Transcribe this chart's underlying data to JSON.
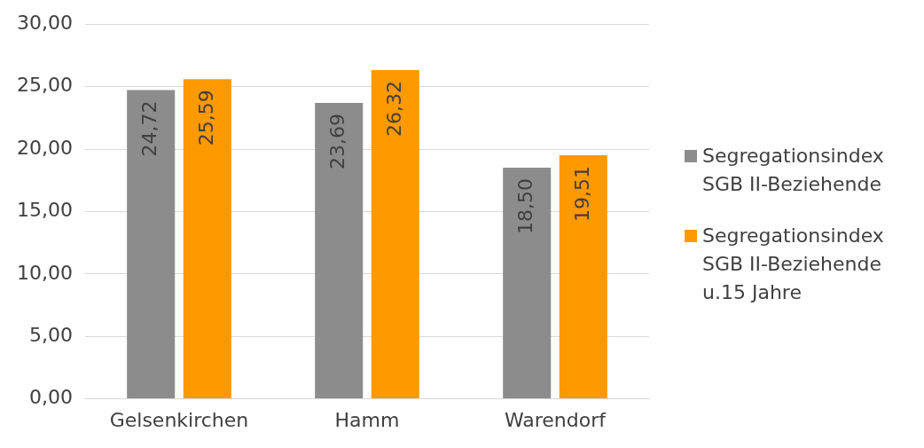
{
  "chart_data": {
    "type": "bar",
    "categories": [
      "Gelsenkirchen",
      "Hamm",
      "Warendorf"
    ],
    "series": [
      {
        "name": "Segregationsindex SGB II-Beziehende",
        "color": "#8c8c8c",
        "values": [
          24.72,
          23.69,
          18.5
        ],
        "value_labels": [
          "24,72",
          "23,69",
          "18,50"
        ]
      },
      {
        "name": "Segregationsindex SGB II-Beziehende u.15 Jahre",
        "color": "#ff9900",
        "values": [
          25.59,
          26.32,
          19.51
        ],
        "value_labels": [
          "25,59",
          "26,32",
          "19,51"
        ]
      }
    ],
    "ylim": [
      0,
      30
    ],
    "yticks": [
      {
        "value": 0,
        "label": "0,00"
      },
      {
        "value": 5,
        "label": "5,00"
      },
      {
        "value": 10,
        "label": "10,00"
      },
      {
        "value": 15,
        "label": "15,00"
      },
      {
        "value": 20,
        "label": "20,00"
      },
      {
        "value": 25,
        "label": "25,00"
      },
      {
        "value": 30,
        "label": "30,00"
      }
    ],
    "grid": "y",
    "legend": "right"
  }
}
